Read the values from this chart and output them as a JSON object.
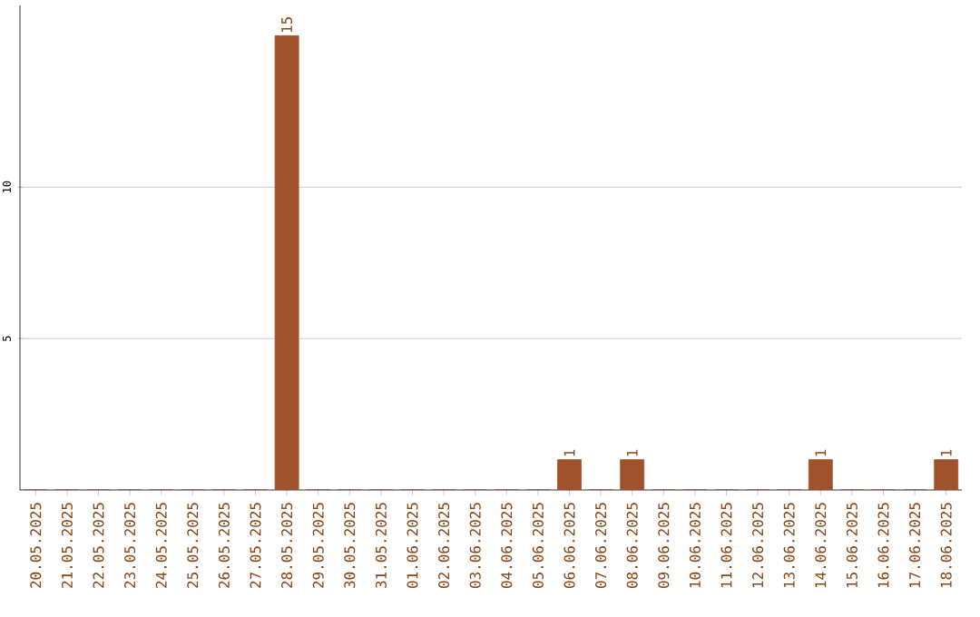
{
  "chart_data": {
    "type": "bar",
    "categories": [
      "20.05.2025",
      "21.05.2025",
      "22.05.2025",
      "23.05.2025",
      "24.05.2025",
      "25.05.2025",
      "26.05.2025",
      "27.05.2025",
      "28.05.2025",
      "29.05.2025",
      "30.05.2025",
      "31.05.2025",
      "01.06.2025",
      "02.06.2025",
      "03.06.2025",
      "04.06.2025",
      "05.06.2025",
      "06.06.2025",
      "07.06.2025",
      "08.06.2025",
      "09.06.2025",
      "10.06.2025",
      "11.06.2025",
      "12.06.2025",
      "13.06.2025",
      "14.06.2025",
      "15.06.2025",
      "16.06.2025",
      "17.06.2025",
      "18.06.2025"
    ],
    "values": [
      0,
      0,
      0,
      0,
      0,
      0,
      0,
      0,
      15,
      0,
      0,
      0,
      0,
      0,
      0,
      0,
      0,
      1,
      0,
      1,
      0,
      0,
      0,
      0,
      0,
      1,
      0,
      0,
      0,
      1
    ],
    "value_labels": [
      null,
      null,
      null,
      null,
      null,
      null,
      null,
      null,
      "15",
      null,
      null,
      null,
      null,
      null,
      null,
      null,
      null,
      "1",
      null,
      "1",
      null,
      null,
      null,
      null,
      null,
      "1",
      null,
      null,
      null,
      "1"
    ],
    "color": "#a0522d",
    "ylim": [
      0,
      16
    ],
    "yticks": [
      5,
      10
    ],
    "grid": "y"
  }
}
